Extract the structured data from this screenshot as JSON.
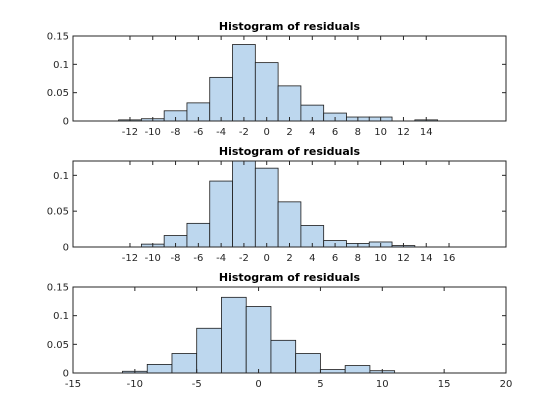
{
  "colors": {
    "bar_fill": "#bdd7ee",
    "bar_edge": "#1a1a1a",
    "axis": "#262626",
    "background": "#ffffff"
  },
  "chart_data": [
    {
      "type": "bar",
      "title": "Histogram of residuals",
      "xlabel": "",
      "ylabel": "",
      "grid": false,
      "xlim": [
        -17,
        21
      ],
      "ylim": [
        0,
        0.15
      ],
      "bin_width": 2,
      "bin_edges": [
        -13,
        -11,
        -9,
        -7,
        -5,
        -3,
        -1,
        1,
        3,
        5,
        7,
        9,
        11,
        13,
        15
      ],
      "values": [
        0.002,
        0.004,
        0.018,
        0.032,
        0.077,
        0.135,
        0.103,
        0.062,
        0.028,
        0.014,
        0.007,
        0.007,
        0.0,
        0.002
      ],
      "x_ticks": [
        "-12",
        "-10",
        "-8",
        "-6",
        "-4",
        "-2",
        "0",
        "2",
        "4",
        "6",
        "8",
        "10",
        "12",
        "14"
      ],
      "y_ticks": [
        "0",
        "0.05",
        "0.1",
        "0.15"
      ]
    },
    {
      "type": "bar",
      "title": "Histogram of residuals",
      "xlabel": "",
      "ylabel": "",
      "grid": false,
      "xlim": [
        -17,
        21
      ],
      "ylim": [
        0,
        0.12
      ],
      "bin_width": 2,
      "bin_edges": [
        -11,
        -9,
        -7,
        -5,
        -3,
        -1,
        1,
        3,
        5,
        7,
        9,
        11,
        13,
        15
      ],
      "values": [
        0.004,
        0.016,
        0.033,
        0.092,
        0.122,
        0.11,
        0.063,
        0.03,
        0.009,
        0.005,
        0.007,
        0.002,
        0.0
      ],
      "x_ticks": [
        "-12",
        "-10",
        "-8",
        "-6",
        "-4",
        "-2",
        "0",
        "2",
        "4",
        "6",
        "8",
        "10",
        "12",
        "14",
        "16"
      ],
      "y_ticks": [
        "0",
        "0.05",
        "0.1"
      ]
    },
    {
      "type": "bar",
      "title": "Histogram of residuals",
      "xlabel": "",
      "ylabel": "",
      "grid": false,
      "xlim": [
        -15,
        20
      ],
      "ylim": [
        0,
        0.15
      ],
      "bin_width": 2,
      "bin_edges": [
        -11,
        -9,
        -7,
        -5,
        -3,
        -1,
        1,
        3,
        5,
        7,
        9,
        11,
        13
      ],
      "values": [
        0.003,
        0.015,
        0.034,
        0.078,
        0.132,
        0.116,
        0.057,
        0.034,
        0.006,
        0.013,
        0.004,
        0.0
      ],
      "x_ticks": [
        "-15",
        "-10",
        "-5",
        "0",
        "5",
        "10",
        "15",
        "20"
      ],
      "y_ticks": [
        "0",
        "0.05",
        "0.1",
        "0.15"
      ]
    }
  ]
}
